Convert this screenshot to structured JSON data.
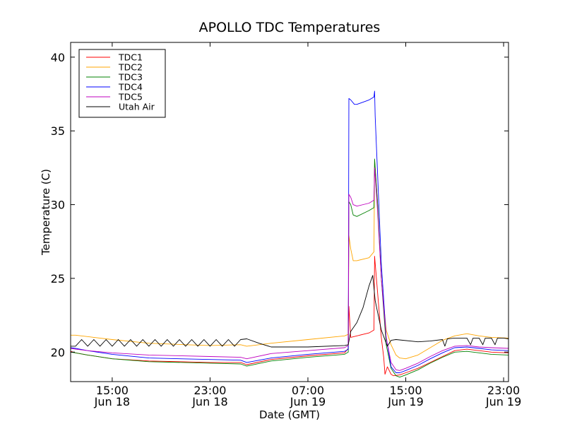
{
  "chart_data": {
    "type": "line",
    "title": "APOLLO TDC Temperatures",
    "xlabel": "Date (GMT)",
    "ylabel": "Temperature (C)",
    "xlim": [
      11.6,
      47.4
    ],
    "ylim": [
      18,
      41
    ],
    "yticks": [
      20,
      25,
      30,
      35,
      40
    ],
    "ytick_labels": [
      "20",
      "25",
      "30",
      "35",
      "40"
    ],
    "xticks": [
      {
        "x": 15,
        "time": "15:00",
        "date": "Jun 18"
      },
      {
        "x": 23,
        "time": "23:00",
        "date": "Jun 18"
      },
      {
        "x": 31,
        "time": "07:00",
        "date": "Jun 19"
      },
      {
        "x": 39,
        "time": "15:00",
        "date": "Jun 19"
      },
      {
        "x": 47,
        "time": "23:00",
        "date": "Jun 19"
      }
    ],
    "x_unit": "hours since Jun 18 00:00 GMT",
    "legend": {
      "position": "top-left",
      "entries": [
        {
          "name": "TDC1",
          "color": "#ff0000"
        },
        {
          "name": "TDC2",
          "color": "#ffa500"
        },
        {
          "name": "TDC3",
          "color": "#008000"
        },
        {
          "name": "TDC4",
          "color": "#0000ff"
        },
        {
          "name": "TDC5",
          "color": "#bf00bf"
        },
        {
          "name": "Utah Air",
          "color": "#000000"
        }
      ]
    },
    "series": [
      {
        "name": "TDC1",
        "color": "#ff0000",
        "points": [
          [
            11.6,
            20.05
          ],
          [
            12.0,
            19.95
          ],
          [
            13.0,
            19.8
          ],
          [
            15.0,
            19.55
          ],
          [
            18.0,
            19.4
          ],
          [
            23.0,
            19.3
          ],
          [
            25.5,
            19.3
          ],
          [
            26.0,
            19.15
          ],
          [
            28.0,
            19.5
          ],
          [
            31.0,
            19.75
          ],
          [
            34.0,
            19.95
          ],
          [
            34.3,
            20.25
          ],
          [
            34.35,
            23.1
          ],
          [
            34.5,
            21.0
          ],
          [
            35.0,
            21.1
          ],
          [
            36.0,
            21.3
          ],
          [
            36.4,
            21.5
          ],
          [
            36.45,
            26.5
          ],
          [
            36.7,
            24.0
          ],
          [
            37.0,
            21.0
          ],
          [
            37.2,
            19.6
          ],
          [
            37.3,
            18.5
          ],
          [
            37.5,
            19.0
          ],
          [
            37.8,
            18.5
          ],
          [
            38.0,
            18.4
          ],
          [
            38.5,
            18.45
          ],
          [
            39.0,
            18.6
          ],
          [
            40.0,
            18.9
          ],
          [
            41.0,
            19.3
          ],
          [
            42.0,
            19.7
          ],
          [
            43.0,
            20.1
          ],
          [
            44.0,
            20.2
          ],
          [
            45.0,
            20.1
          ],
          [
            46.0,
            20.0
          ],
          [
            47.4,
            19.95
          ]
        ]
      },
      {
        "name": "TDC2",
        "color": "#ffa500",
        "points": [
          [
            11.6,
            21.15
          ],
          [
            12.0,
            21.15
          ],
          [
            13.5,
            21.0
          ],
          [
            15.0,
            20.85
          ],
          [
            18.0,
            20.6
          ],
          [
            21.0,
            20.5
          ],
          [
            23.0,
            20.45
          ],
          [
            25.5,
            20.5
          ],
          [
            26.0,
            20.4
          ],
          [
            28.0,
            20.6
          ],
          [
            31.0,
            20.85
          ],
          [
            34.0,
            21.1
          ],
          [
            34.3,
            21.2
          ],
          [
            34.35,
            27.9
          ],
          [
            34.5,
            27.0
          ],
          [
            34.7,
            26.2
          ],
          [
            35.0,
            26.2
          ],
          [
            36.0,
            26.4
          ],
          [
            36.4,
            26.8
          ],
          [
            36.45,
            33.0
          ],
          [
            36.7,
            30.0
          ],
          [
            37.0,
            25.0
          ],
          [
            37.4,
            21.5
          ],
          [
            37.8,
            20.5
          ],
          [
            38.2,
            19.8
          ],
          [
            38.5,
            19.6
          ],
          [
            39.0,
            19.55
          ],
          [
            40.0,
            19.8
          ],
          [
            41.0,
            20.3
          ],
          [
            42.0,
            20.8
          ],
          [
            43.0,
            21.1
          ],
          [
            44.0,
            21.25
          ],
          [
            45.0,
            21.1
          ],
          [
            46.0,
            21.0
          ],
          [
            47.4,
            20.95
          ]
        ]
      },
      {
        "name": "TDC3",
        "color": "#008000",
        "points": [
          [
            11.6,
            20.0
          ],
          [
            12.0,
            19.95
          ],
          [
            13.0,
            19.8
          ],
          [
            15.0,
            19.55
          ],
          [
            18.0,
            19.35
          ],
          [
            23.0,
            19.25
          ],
          [
            25.5,
            19.2
          ],
          [
            26.0,
            19.05
          ],
          [
            28.0,
            19.4
          ],
          [
            31.0,
            19.65
          ],
          [
            34.0,
            19.85
          ],
          [
            34.3,
            20.0
          ],
          [
            34.35,
            30.2
          ],
          [
            34.5,
            30.0
          ],
          [
            34.7,
            29.3
          ],
          [
            35.0,
            29.2
          ],
          [
            36.0,
            29.6
          ],
          [
            36.4,
            29.8
          ],
          [
            36.45,
            33.1
          ],
          [
            36.7,
            30.0
          ],
          [
            37.0,
            25.0
          ],
          [
            37.4,
            20.5
          ],
          [
            37.8,
            18.9
          ],
          [
            38.2,
            18.4
          ],
          [
            38.5,
            18.3
          ],
          [
            39.0,
            18.45
          ],
          [
            40.0,
            18.8
          ],
          [
            41.0,
            19.25
          ],
          [
            42.0,
            19.65
          ],
          [
            43.0,
            20.0
          ],
          [
            44.0,
            20.05
          ],
          [
            45.0,
            19.95
          ],
          [
            46.0,
            19.85
          ],
          [
            47.4,
            19.8
          ]
        ]
      },
      {
        "name": "TDC4",
        "color": "#0000ff",
        "points": [
          [
            11.6,
            20.3
          ],
          [
            12.0,
            20.25
          ],
          [
            13.0,
            20.1
          ],
          [
            15.0,
            19.85
          ],
          [
            18.0,
            19.6
          ],
          [
            23.0,
            19.5
          ],
          [
            25.5,
            19.45
          ],
          [
            26.0,
            19.3
          ],
          [
            28.0,
            19.6
          ],
          [
            31.0,
            19.85
          ],
          [
            34.0,
            20.05
          ],
          [
            34.3,
            20.2
          ],
          [
            34.35,
            37.2
          ],
          [
            34.5,
            37.1
          ],
          [
            34.8,
            36.8
          ],
          [
            35.0,
            36.8
          ],
          [
            36.0,
            37.1
          ],
          [
            36.4,
            37.3
          ],
          [
            36.45,
            37.7
          ],
          [
            36.5,
            36.0
          ],
          [
            36.7,
            32.0
          ],
          [
            37.0,
            26.0
          ],
          [
            37.4,
            21.0
          ],
          [
            37.8,
            19.0
          ],
          [
            38.2,
            18.6
          ],
          [
            38.5,
            18.6
          ],
          [
            39.0,
            18.75
          ],
          [
            40.0,
            19.1
          ],
          [
            41.0,
            19.55
          ],
          [
            42.0,
            19.95
          ],
          [
            43.0,
            20.3
          ],
          [
            44.0,
            20.35
          ],
          [
            45.0,
            20.25
          ],
          [
            46.0,
            20.15
          ],
          [
            47.4,
            20.1
          ]
        ]
      },
      {
        "name": "TDC5",
        "color": "#bf00bf",
        "points": [
          [
            11.6,
            20.25
          ],
          [
            12.0,
            20.2
          ],
          [
            13.0,
            20.1
          ],
          [
            15.0,
            19.95
          ],
          [
            18.0,
            19.8
          ],
          [
            23.0,
            19.7
          ],
          [
            25.5,
            19.65
          ],
          [
            26.0,
            19.55
          ],
          [
            28.0,
            19.9
          ],
          [
            31.0,
            20.1
          ],
          [
            34.0,
            20.3
          ],
          [
            34.3,
            20.45
          ],
          [
            34.35,
            30.7
          ],
          [
            34.5,
            30.5
          ],
          [
            34.7,
            30.0
          ],
          [
            35.0,
            29.9
          ],
          [
            36.0,
            30.1
          ],
          [
            36.4,
            30.3
          ],
          [
            36.45,
            32.5
          ],
          [
            36.7,
            29.5
          ],
          [
            37.0,
            25.0
          ],
          [
            37.4,
            21.0
          ],
          [
            37.8,
            19.3
          ],
          [
            38.2,
            18.8
          ],
          [
            38.5,
            18.75
          ],
          [
            39.0,
            18.9
          ],
          [
            40.0,
            19.25
          ],
          [
            41.0,
            19.7
          ],
          [
            42.0,
            20.1
          ],
          [
            43.0,
            20.4
          ],
          [
            44.0,
            20.45
          ],
          [
            45.0,
            20.35
          ],
          [
            46.0,
            20.3
          ],
          [
            47.4,
            20.25
          ]
        ]
      },
      {
        "name": "Utah Air",
        "color": "#000000",
        "points": [
          [
            11.6,
            20.4
          ],
          [
            12.0,
            20.4
          ],
          [
            12.5,
            20.85
          ],
          [
            13.0,
            20.4
          ],
          [
            13.5,
            20.85
          ],
          [
            14.0,
            20.4
          ],
          [
            14.5,
            20.85
          ],
          [
            15.0,
            20.4
          ],
          [
            15.5,
            20.85
          ],
          [
            16.0,
            20.4
          ],
          [
            16.5,
            20.85
          ],
          [
            17.0,
            20.4
          ],
          [
            17.5,
            20.85
          ],
          [
            18.0,
            20.4
          ],
          [
            18.5,
            20.85
          ],
          [
            19.0,
            20.4
          ],
          [
            19.5,
            20.85
          ],
          [
            20.0,
            20.4
          ],
          [
            20.5,
            20.85
          ],
          [
            21.0,
            20.4
          ],
          [
            21.5,
            20.85
          ],
          [
            22.0,
            20.4
          ],
          [
            22.5,
            20.85
          ],
          [
            23.0,
            20.4
          ],
          [
            23.5,
            20.85
          ],
          [
            24.0,
            20.4
          ],
          [
            24.5,
            20.85
          ],
          [
            25.0,
            20.4
          ],
          [
            25.5,
            20.85
          ],
          [
            26.0,
            20.9
          ],
          [
            27.0,
            20.6
          ],
          [
            28.0,
            20.35
          ],
          [
            31.0,
            20.35
          ],
          [
            34.0,
            20.45
          ],
          [
            34.3,
            20.5
          ],
          [
            34.5,
            21.4
          ],
          [
            35.0,
            22.0
          ],
          [
            35.5,
            23.0
          ],
          [
            36.0,
            24.5
          ],
          [
            36.3,
            25.2
          ],
          [
            36.5,
            23.5
          ],
          [
            37.0,
            21.5
          ],
          [
            37.4,
            20.6
          ],
          [
            37.5,
            20.4
          ],
          [
            37.8,
            20.8
          ],
          [
            38.2,
            20.85
          ],
          [
            40.0,
            20.7
          ],
          [
            41.0,
            20.75
          ],
          [
            42.0,
            20.85
          ],
          [
            42.2,
            20.4
          ],
          [
            42.4,
            20.9
          ],
          [
            43.0,
            20.95
          ],
          [
            44.0,
            20.95
          ],
          [
            44.3,
            20.5
          ],
          [
            44.5,
            20.95
          ],
          [
            45.0,
            20.95
          ],
          [
            45.3,
            20.5
          ],
          [
            45.5,
            20.95
          ],
          [
            46.0,
            20.95
          ],
          [
            46.3,
            20.5
          ],
          [
            46.5,
            20.95
          ],
          [
            47.0,
            20.95
          ],
          [
            47.4,
            20.9
          ]
        ]
      }
    ]
  }
}
